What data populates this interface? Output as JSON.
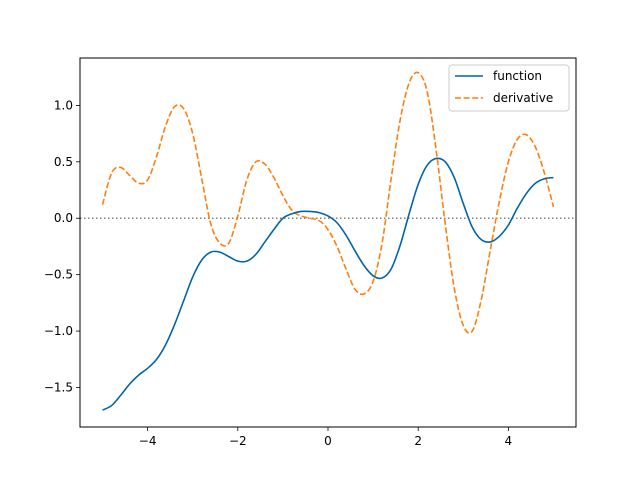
{
  "chart_data": {
    "type": "line",
    "title": "",
    "xlabel": "",
    "ylabel": "",
    "xlim": [
      -5.5,
      5.5
    ],
    "ylim": [
      -1.85,
      1.42
    ],
    "xticks": [
      -4,
      -2,
      0,
      2,
      4
    ],
    "yticks": [
      -1.5,
      -1.0,
      -0.5,
      0.0,
      0.5,
      1.0
    ],
    "xtick_labels": [
      "−4",
      "−2",
      "0",
      "2",
      "4"
    ],
    "ytick_labels": [
      "−1.5",
      "−1.0",
      "−0.5",
      "0.0",
      "0.5",
      "1.0"
    ],
    "grid": false,
    "legend_position": "upper right",
    "reference_line": {
      "y": 0,
      "style": "dotted",
      "color": "#808080"
    },
    "series": [
      {
        "name": "function",
        "color": "#0066a8",
        "style": "solid",
        "x": [
          -5.0,
          -4.8,
          -4.6,
          -4.4,
          -4.2,
          -4.0,
          -3.8,
          -3.6,
          -3.4,
          -3.2,
          -3.0,
          -2.8,
          -2.6,
          -2.4,
          -2.2,
          -2.0,
          -1.8,
          -1.6,
          -1.4,
          -1.2,
          -1.0,
          -0.8,
          -0.6,
          -0.4,
          -0.2,
          0.0,
          0.2,
          0.4,
          0.6,
          0.8,
          1.0,
          1.2,
          1.4,
          1.6,
          1.8,
          2.0,
          2.2,
          2.4,
          2.6,
          2.8,
          3.0,
          3.2,
          3.4,
          3.6,
          3.8,
          4.0,
          4.2,
          4.4,
          4.6,
          4.8,
          5.0
        ],
        "y": [
          -1.7,
          -1.66,
          -1.57,
          -1.47,
          -1.39,
          -1.33,
          -1.25,
          -1.12,
          -0.94,
          -0.73,
          -0.52,
          -0.37,
          -0.3,
          -0.3,
          -0.34,
          -0.38,
          -0.38,
          -0.32,
          -0.21,
          -0.1,
          0.0,
          0.04,
          0.06,
          0.06,
          0.05,
          0.02,
          -0.04,
          -0.15,
          -0.29,
          -0.42,
          -0.51,
          -0.53,
          -0.45,
          -0.24,
          0.04,
          0.3,
          0.47,
          0.53,
          0.5,
          0.36,
          0.13,
          -0.08,
          -0.19,
          -0.21,
          -0.16,
          -0.06,
          0.09,
          0.22,
          0.31,
          0.35,
          0.36
        ]
      },
      {
        "name": "derivative",
        "color": "#ff7f0e",
        "style": "dashed",
        "x": [
          -5.0,
          -4.8,
          -4.6,
          -4.4,
          -4.2,
          -4.0,
          -3.8,
          -3.6,
          -3.4,
          -3.2,
          -3.0,
          -2.8,
          -2.6,
          -2.4,
          -2.2,
          -2.0,
          -1.8,
          -1.6,
          -1.4,
          -1.2,
          -1.0,
          -0.8,
          -0.6,
          -0.4,
          -0.2,
          0.0,
          0.2,
          0.4,
          0.6,
          0.8,
          1.0,
          1.2,
          1.4,
          1.6,
          1.8,
          2.0,
          2.2,
          2.4,
          2.6,
          2.8,
          3.0,
          3.2,
          3.4,
          3.6,
          3.8,
          4.0,
          4.2,
          4.4,
          4.6,
          4.8,
          5.0
        ],
        "y": [
          0.12,
          0.4,
          0.45,
          0.38,
          0.31,
          0.34,
          0.55,
          0.82,
          0.99,
          0.97,
          0.75,
          0.35,
          -0.05,
          -0.22,
          -0.22,
          0.02,
          0.34,
          0.5,
          0.48,
          0.36,
          0.2,
          0.07,
          0.02,
          0.0,
          -0.02,
          -0.1,
          -0.25,
          -0.45,
          -0.63,
          -0.67,
          -0.56,
          -0.22,
          0.35,
          0.87,
          1.2,
          1.29,
          1.12,
          0.6,
          -0.05,
          -0.62,
          -0.95,
          -1.0,
          -0.72,
          -0.28,
          0.15,
          0.5,
          0.7,
          0.74,
          0.63,
          0.4,
          0.1
        ]
      }
    ]
  }
}
